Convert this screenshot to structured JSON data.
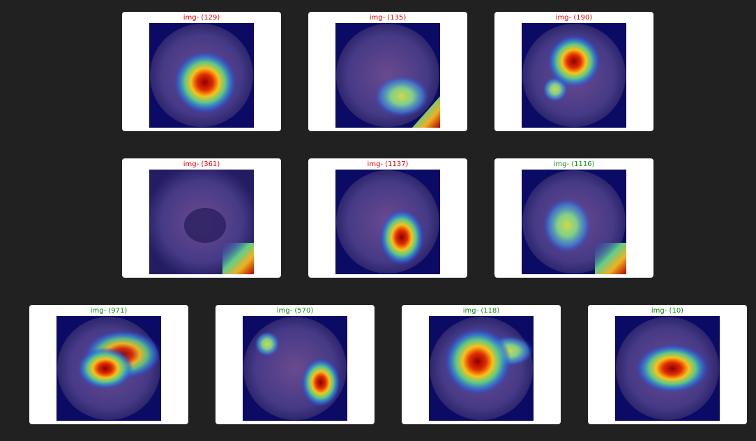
{
  "colors": {
    "page_background": "#212121",
    "card_background": "#ffffff",
    "title_red": "#e60000",
    "title_green": "#118a11"
  },
  "rows": [
    {
      "cards": [
        {
          "title": "img- (129)",
          "title_color": "red"
        },
        {
          "title": "img- (135)",
          "title_color": "red"
        },
        {
          "title": "img- (190)",
          "title_color": "red"
        }
      ]
    },
    {
      "cards": [
        {
          "title": "img- (361)",
          "title_color": "red"
        },
        {
          "title": "img- (1137)",
          "title_color": "red"
        },
        {
          "title": "img- (1116)",
          "title_color": "green"
        }
      ]
    },
    {
      "cards": [
        {
          "title": "img- (971)",
          "title_color": "green"
        },
        {
          "title": "img- (570)",
          "title_color": "green"
        },
        {
          "title": "img- (118)",
          "title_color": "green"
        },
        {
          "title": "img- (10)",
          "title_color": "green"
        }
      ]
    }
  ]
}
